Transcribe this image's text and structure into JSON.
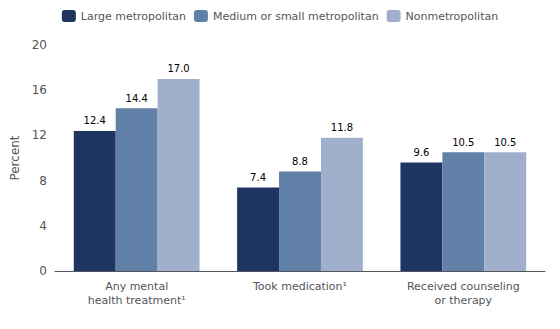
{
  "chart_data": {
    "type": "bar",
    "categories": [
      "Any mental\nhealth treatment¹",
      "Took medication¹",
      "Received counseling\nor therapy"
    ],
    "series": [
      {
        "name": "Large metropolitan",
        "color": "#1e3461",
        "values": [
          12.4,
          7.4,
          9.6
        ]
      },
      {
        "name": "Medium or small metropolitan",
        "color": "#6080a8",
        "values": [
          14.4,
          8.8,
          10.5
        ]
      },
      {
        "name": "Nonmetropolitan",
        "color": "#a0b0cc",
        "values": [
          17.0,
          11.8,
          10.5
        ],
        "value_labels": [
          "17.0",
          "11.8",
          "10.5"
        ]
      }
    ],
    "ylabel": "Percent",
    "ylim": [
      0,
      20
    ],
    "yticks": [
      0,
      4,
      8,
      12,
      16,
      20
    ],
    "grid": false,
    "legend": "top",
    "data_labels": true
  }
}
